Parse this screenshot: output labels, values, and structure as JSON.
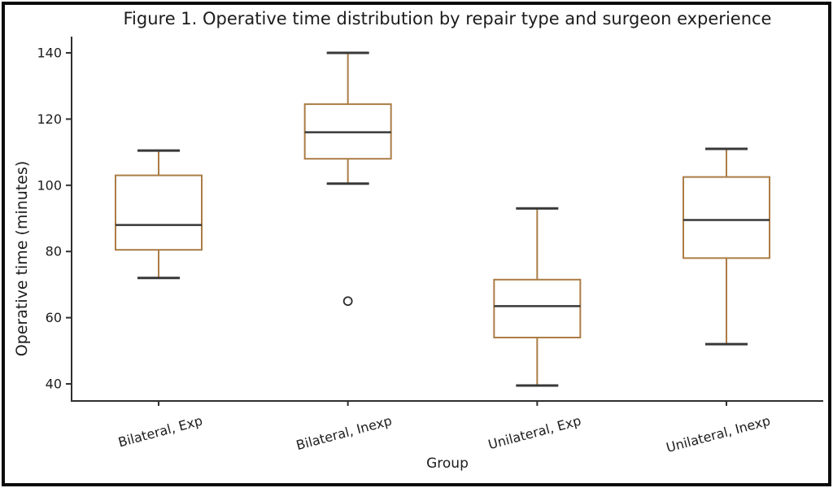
{
  "figure": {
    "title": "Figure 1. Operative time distribution by repair type and surgeon experience"
  },
  "chart_data": {
    "type": "boxplot",
    "title": "Figure 1. Operative time distribution by repair type and surgeon experience",
    "xlabel": "Group",
    "ylabel": "Operative time (minutes)",
    "ylim": [
      35,
      145
    ],
    "yticks": [
      40,
      60,
      80,
      100,
      120,
      140
    ],
    "grid": false,
    "legend": "none",
    "categories": [
      "Bilateral, Exp",
      "Bilateral, Inexp",
      "Unilateral, Exp",
      "Unilateral, Inexp"
    ],
    "series": [
      {
        "label": "Bilateral, Exp",
        "whisker_low": 72,
        "q1": 80.5,
        "median": 88,
        "q3": 103,
        "whisker_high": 110.5,
        "outliers": []
      },
      {
        "label": "Bilateral, Inexp",
        "whisker_low": 100.5,
        "q1": 108,
        "median": 116,
        "q3": 124.5,
        "whisker_high": 140,
        "outliers": [
          65
        ]
      },
      {
        "label": "Unilateral, Exp",
        "whisker_low": 39.5,
        "q1": 54,
        "median": 63.5,
        "q3": 71.5,
        "whisker_high": 93,
        "outliers": []
      },
      {
        "label": "Unilateral, Inexp",
        "whisker_low": 52,
        "q1": 78,
        "median": 89.5,
        "q3": 102.5,
        "whisker_high": 111,
        "outliers": []
      }
    ],
    "colors": {
      "box_line": "#ab7d45",
      "median_line": "#383838",
      "whisker_cap": "#383838",
      "outlier_ring": "#2a2a2a",
      "axis": "#2f2f2f",
      "text": "#1c1c1c",
      "background": "#ffffff",
      "frame": "#0b0b0b"
    }
  }
}
